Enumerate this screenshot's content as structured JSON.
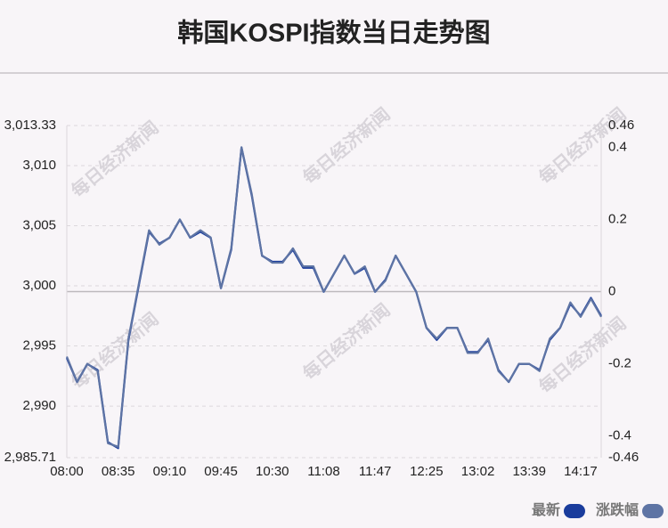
{
  "chart_data": {
    "type": "line",
    "title": "韩国KOSPI指数当日走势图",
    "watermark": "每日经济新闻",
    "categories": [
      "08:00",
      null,
      null,
      null,
      null,
      "08:35",
      null,
      null,
      null,
      null,
      "09:10",
      null,
      null,
      null,
      null,
      "09:45",
      null,
      null,
      null,
      null,
      "10:30",
      null,
      null,
      null,
      null,
      "11:08",
      null,
      null,
      null,
      null,
      "11:47",
      null,
      null,
      null,
      null,
      "12:25",
      null,
      null,
      null,
      null,
      "13:02",
      null,
      null,
      null,
      null,
      "13:39",
      null,
      null,
      null,
      null,
      "14:17",
      null,
      null
    ],
    "series": [
      {
        "name": "最新",
        "color": "#1a3c9c",
        "values": [
          2994,
          2992,
          2993.5,
          2993,
          2987,
          2986.5,
          2995.5,
          3000,
          3004.5,
          3003.5,
          3004,
          3005.5,
          3004,
          3004.5,
          3004,
          2999.8,
          3003,
          3011.5,
          3007.5,
          3002.5,
          3002,
          3002,
          3003,
          3001.5,
          3001.5,
          2999.5,
          3001,
          3002.5,
          3001,
          3001.5,
          2999.5,
          3000.5,
          3002.5,
          3001,
          2999.5,
          2996.5,
          2995.5,
          2996.5,
          2996.5,
          2994.5,
          2994.5,
          2995.5,
          2993,
          2992,
          2993.5,
          2993.5,
          2993,
          2995.5,
          2996.5,
          2998.5,
          2997.5,
          2999,
          2997.5
        ]
      },
      {
        "name": "涨跌幅",
        "color": "#5e74a4",
        "axis": "y2",
        "values": [
          -0.18,
          -0.25,
          -0.2,
          -0.22,
          -0.42,
          -0.43,
          -0.13,
          0.02,
          0.17,
          0.13,
          0.15,
          0.2,
          0.15,
          0.17,
          0.15,
          0.01,
          0.12,
          0.4,
          0.27,
          0.1,
          0.08,
          0.08,
          0.12,
          0.07,
          0.07,
          0,
          0.05,
          0.1,
          0.05,
          0.07,
          0,
          0.03,
          0.1,
          0.05,
          0,
          -0.1,
          -0.13,
          -0.1,
          -0.1,
          -0.17,
          -0.17,
          -0.13,
          -0.22,
          -0.25,
          -0.2,
          -0.2,
          -0.22,
          -0.13,
          -0.1,
          -0.03,
          -0.07,
          -0.02,
          -0.07
        ]
      }
    ],
    "ylim": [
      2985.71,
      3013.33
    ],
    "yticks": [
      {
        "value": 2985.71,
        "label": "2,985.71"
      },
      {
        "value": 2990,
        "label": "2,990"
      },
      {
        "value": 2995,
        "label": "2,995"
      },
      {
        "value": 3000,
        "label": "3,000"
      },
      {
        "value": 3005,
        "label": "3,005"
      },
      {
        "value": 3010,
        "label": "3,010"
      },
      {
        "value": 3013.33,
        "label": "3,013.33"
      }
    ],
    "y2lim": [
      -0.46,
      0.46
    ],
    "y2ticks": [
      -0.46,
      -0.4,
      -0.2,
      0,
      0.2,
      0.4,
      0.46
    ],
    "grid": true,
    "legend": "bottom-right"
  }
}
